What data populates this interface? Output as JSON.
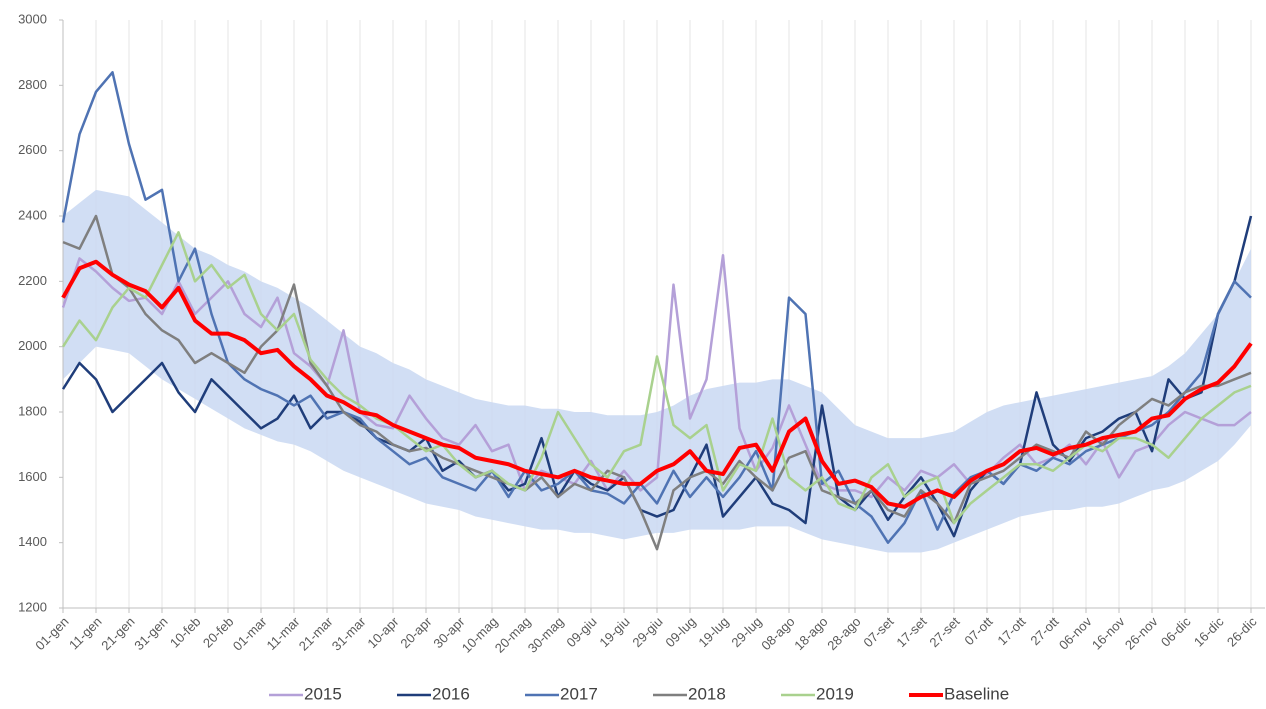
{
  "chart_data": {
    "type": "line",
    "categories": [
      "01-gen",
      null,
      "11-gen",
      null,
      "21-gen",
      null,
      "31-gen",
      null,
      "10-feb",
      null,
      "20-feb",
      null,
      "01-mar",
      null,
      "11-mar",
      null,
      "21-mar",
      null,
      "31-mar",
      null,
      "10-apr",
      null,
      "20-apr",
      null,
      "30-apr",
      null,
      "10-mag",
      null,
      "20-mag",
      null,
      "30-mag",
      null,
      "09-giu",
      null,
      "19-giu",
      null,
      "29-giu",
      null,
      "09-lug",
      null,
      "19-lug",
      null,
      "29-lug",
      null,
      "08-ago",
      null,
      "18-ago",
      null,
      "28-ago",
      null,
      "07-set",
      null,
      "17-set",
      null,
      "27-set",
      null,
      "07-ott",
      null,
      "17-ott",
      null,
      "27-ott",
      null,
      "06-nov",
      null,
      "16-nov",
      null,
      "26-nov",
      null,
      "06-dic",
      null,
      "16-dic",
      null,
      "26-dic"
    ],
    "ylim": [
      1200,
      3000
    ],
    "yticks": [
      1200,
      1400,
      1600,
      1800,
      2000,
      2200,
      2400,
      2600,
      2800,
      3000
    ],
    "grid": true,
    "legend": "bottom",
    "band": {
      "color": "#c9d8f2",
      "upper": [
        2400,
        2440,
        2480,
        2470,
        2460,
        2420,
        2380,
        2340,
        2300,
        2280,
        2250,
        2230,
        2200,
        2180,
        2150,
        2120,
        2080,
        2040,
        2000,
        1980,
        1950,
        1930,
        1900,
        1880,
        1860,
        1840,
        1830,
        1820,
        1820,
        1810,
        1810,
        1800,
        1800,
        1790,
        1790,
        1790,
        1800,
        1820,
        1850,
        1870,
        1880,
        1890,
        1890,
        1900,
        1900,
        1880,
        1860,
        1810,
        1760,
        1740,
        1720,
        1720,
        1720,
        1730,
        1740,
        1770,
        1800,
        1820,
        1830,
        1840,
        1850,
        1860,
        1870,
        1880,
        1890,
        1900,
        1910,
        1940,
        1980,
        2040,
        2100,
        2200,
        2300
      ],
      "lower": [
        1900,
        1950,
        2000,
        1990,
        1980,
        1940,
        1900,
        1870,
        1840,
        1810,
        1780,
        1750,
        1730,
        1710,
        1700,
        1680,
        1650,
        1620,
        1600,
        1580,
        1560,
        1540,
        1520,
        1510,
        1500,
        1480,
        1470,
        1460,
        1450,
        1440,
        1440,
        1430,
        1430,
        1420,
        1410,
        1420,
        1430,
        1430,
        1440,
        1440,
        1440,
        1440,
        1450,
        1450,
        1450,
        1430,
        1410,
        1400,
        1390,
        1380,
        1370,
        1370,
        1370,
        1380,
        1400,
        1420,
        1440,
        1460,
        1480,
        1490,
        1500,
        1500,
        1510,
        1510,
        1520,
        1540,
        1560,
        1570,
        1590,
        1620,
        1650,
        1700,
        1760
      ]
    },
    "series": [
      {
        "name": "2015",
        "color": "#b4a0d8",
        "width": 2.5,
        "values": [
          2120,
          2270,
          2230,
          2180,
          2140,
          2150,
          2100,
          2200,
          2100,
          2150,
          2200,
          2100,
          2060,
          2150,
          1980,
          1940,
          1880,
          2050,
          1800,
          1760,
          1750,
          1850,
          1780,
          1720,
          1700,
          1760,
          1680,
          1700,
          1560,
          1620,
          1600,
          1580,
          1650,
          1560,
          1620,
          1560,
          1600,
          2190,
          1780,
          1900,
          2280,
          1750,
          1620,
          1690,
          1820,
          1700,
          1580,
          1560,
          1560,
          1540,
          1600,
          1560,
          1620,
          1600,
          1640,
          1580,
          1610,
          1660,
          1700,
          1640,
          1660,
          1700,
          1640,
          1710,
          1600,
          1680,
          1700,
          1760,
          1800,
          1780,
          1760,
          1760,
          1800
        ]
      },
      {
        "name": "2016",
        "color": "#1f3d7a",
        "width": 2.5,
        "values": [
          1870,
          1950,
          1900,
          1800,
          1850,
          1900,
          1950,
          1860,
          1800,
          1900,
          1850,
          1800,
          1750,
          1780,
          1850,
          1750,
          1800,
          1800,
          1770,
          1720,
          1700,
          1680,
          1720,
          1620,
          1650,
          1600,
          1620,
          1560,
          1580,
          1720,
          1540,
          1620,
          1580,
          1560,
          1600,
          1500,
          1480,
          1500,
          1600,
          1700,
          1480,
          1540,
          1600,
          1520,
          1500,
          1460,
          1820,
          1540,
          1500,
          1560,
          1470,
          1540,
          1600,
          1520,
          1420,
          1560,
          1620,
          1580,
          1640,
          1860,
          1700,
          1650,
          1720,
          1740,
          1780,
          1800,
          1680,
          1900,
          1840,
          1860,
          2100,
          2200,
          2400
        ]
      },
      {
        "name": "2017",
        "color": "#4f73b3",
        "width": 2.5,
        "values": [
          2380,
          2650,
          2780,
          2840,
          2620,
          2450,
          2480,
          2200,
          2300,
          2100,
          1950,
          1900,
          1870,
          1850,
          1820,
          1850,
          1780,
          1800,
          1780,
          1720,
          1680,
          1640,
          1660,
          1600,
          1580,
          1560,
          1620,
          1540,
          1620,
          1560,
          1580,
          1620,
          1560,
          1550,
          1520,
          1580,
          1520,
          1620,
          1540,
          1600,
          1540,
          1600,
          1680,
          1560,
          2150,
          2100,
          1580,
          1620,
          1520,
          1480,
          1400,
          1460,
          1560,
          1440,
          1550,
          1600,
          1620,
          1580,
          1640,
          1620,
          1660,
          1640,
          1680,
          1700,
          1720,
          1740,
          1760,
          1800,
          1860,
          1920,
          2100,
          2200,
          2150
        ]
      },
      {
        "name": "2018",
        "color": "#7f7f7f",
        "width": 2.5,
        "values": [
          2320,
          2300,
          2400,
          2220,
          2180,
          2100,
          2050,
          2020,
          1950,
          1980,
          1950,
          1920,
          2000,
          2050,
          2190,
          1950,
          1880,
          1800,
          1760,
          1740,
          1700,
          1680,
          1690,
          1660,
          1640,
          1620,
          1600,
          1580,
          1560,
          1600,
          1540,
          1580,
          1560,
          1620,
          1600,
          1500,
          1380,
          1560,
          1600,
          1620,
          1580,
          1650,
          1600,
          1560,
          1660,
          1680,
          1560,
          1540,
          1520,
          1560,
          1500,
          1480,
          1560,
          1520,
          1460,
          1580,
          1600,
          1620,
          1660,
          1700,
          1680,
          1660,
          1740,
          1700,
          1760,
          1800,
          1840,
          1820,
          1860,
          1880,
          1880,
          1900,
          1920
        ]
      },
      {
        "name": "2019",
        "color": "#a9d18e",
        "width": 2.5,
        "values": [
          2000,
          2080,
          2020,
          2120,
          2180,
          2150,
          2250,
          2350,
          2200,
          2250,
          2180,
          2220,
          2100,
          2050,
          2100,
          1960,
          1900,
          1850,
          1820,
          1780,
          1760,
          1720,
          1680,
          1700,
          1640,
          1600,
          1620,
          1580,
          1560,
          1660,
          1800,
          1720,
          1640,
          1600,
          1680,
          1700,
          1970,
          1760,
          1720,
          1760,
          1560,
          1640,
          1620,
          1780,
          1600,
          1560,
          1600,
          1520,
          1500,
          1600,
          1640,
          1540,
          1580,
          1600,
          1460,
          1520,
          1560,
          1600,
          1640,
          1640,
          1620,
          1660,
          1700,
          1680,
          1720,
          1720,
          1700,
          1660,
          1720,
          1780,
          1820,
          1860,
          1880
        ]
      },
      {
        "name": "Baseline",
        "color": "#ff0000",
        "width": 4,
        "values": [
          2150,
          2240,
          2260,
          2220,
          2190,
          2170,
          2120,
          2180,
          2080,
          2040,
          2040,
          2020,
          1980,
          1990,
          1940,
          1900,
          1850,
          1830,
          1800,
          1790,
          1760,
          1740,
          1720,
          1700,
          1690,
          1660,
          1650,
          1640,
          1620,
          1610,
          1600,
          1620,
          1600,
          1590,
          1580,
          1580,
          1620,
          1640,
          1680,
          1620,
          1610,
          1690,
          1700,
          1620,
          1740,
          1780,
          1650,
          1580,
          1590,
          1570,
          1520,
          1510,
          1540,
          1560,
          1540,
          1590,
          1620,
          1640,
          1680,
          1690,
          1670,
          1690,
          1700,
          1720,
          1730,
          1740,
          1780,
          1790,
          1840,
          1870,
          1890,
          1940,
          2010
        ]
      }
    ]
  }
}
